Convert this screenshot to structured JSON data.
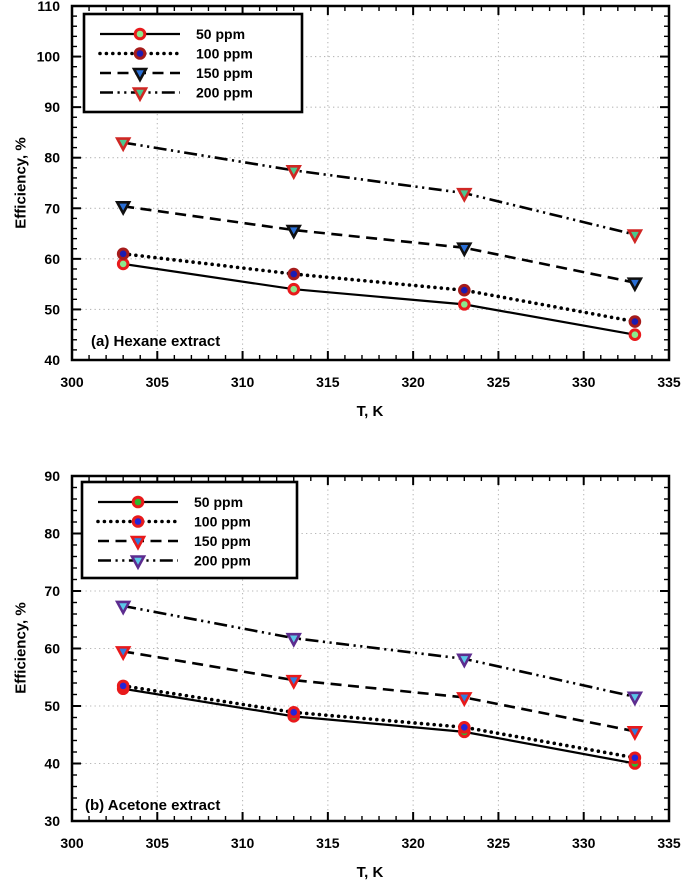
{
  "page": {
    "background": "#ffffff",
    "frame_color": "#000000",
    "grid_color": "#b8b8b8",
    "line_color": "#000000"
  },
  "chart_data": [
    {
      "type": "line",
      "panel_label": "(a) Hexane extract",
      "xlabel": "T, K",
      "ylabel": "Efficiency, %",
      "x": [
        303,
        313,
        323,
        333
      ],
      "xlim": [
        300,
        335
      ],
      "ylim": [
        40,
        110
      ],
      "x_ticks": [
        300,
        305,
        310,
        315,
        320,
        325,
        330,
        335
      ],
      "y_ticks": [
        40,
        50,
        60,
        70,
        80,
        90,
        100,
        110
      ],
      "x_minor_step": 1,
      "y_minor_step": 2,
      "grid": "dotted",
      "legend_position": "top-left",
      "series": [
        {
          "name": "50 ppm",
          "values": [
            59,
            54,
            51,
            45
          ],
          "line": "solid",
          "marker": "circle",
          "marker_stroke": "#e81a1c",
          "marker_fill": "#8ce88c"
        },
        {
          "name": "100 ppm",
          "values": [
            61,
            57,
            53.8,
            47.6
          ],
          "line": "dotted",
          "marker": "circle",
          "marker_stroke": "#a61b1b",
          "marker_fill": "#1b1bb2"
        },
        {
          "name": "150 ppm",
          "values": [
            70.4,
            65.7,
            62.2,
            55.3
          ],
          "line": "dashed",
          "marker": "triangle-down",
          "marker_stroke": "#101010",
          "marker_fill": "#2a6fd6"
        },
        {
          "name": "200 ppm",
          "values": [
            83,
            77.5,
            73,
            64.8
          ],
          "line": "dashdotdot",
          "marker": "triangle-down",
          "marker_stroke": "#d02724",
          "marker_fill": "#49c98e"
        }
      ]
    },
    {
      "type": "line",
      "panel_label": "(b) Acetone extract",
      "xlabel": "T, K",
      "ylabel": "Efficiency, %",
      "x": [
        303,
        313,
        323,
        333
      ],
      "xlim": [
        300,
        335
      ],
      "ylim": [
        30,
        90
      ],
      "x_ticks": [
        300,
        305,
        310,
        315,
        320,
        325,
        330,
        335
      ],
      "y_ticks": [
        30,
        40,
        50,
        60,
        70,
        80,
        90
      ],
      "x_minor_step": 1,
      "y_minor_step": 2,
      "grid": "dotted",
      "legend_position": "top-left",
      "series": [
        {
          "name": "50 ppm",
          "values": [
            53,
            48.2,
            45.5,
            40
          ],
          "line": "solid",
          "marker": "circle",
          "marker_stroke": "#e81a1c",
          "marker_fill": "#2eb82e"
        },
        {
          "name": "100 ppm",
          "values": [
            53.5,
            48.9,
            46.3,
            41
          ],
          "line": "dotted",
          "marker": "circle",
          "marker_stroke": "#e81a1c",
          "marker_fill": "#2424d8"
        },
        {
          "name": "150 ppm",
          "values": [
            59.5,
            54.5,
            51.5,
            45.6
          ],
          "line": "dashed",
          "marker": "triangle-down",
          "marker_stroke": "#e81a1c",
          "marker_fill": "#2e7de0"
        },
        {
          "name": "200 ppm",
          "values": [
            67.4,
            61.8,
            58.2,
            51.6
          ],
          "line": "dashdotdot",
          "marker": "triangle-down",
          "marker_stroke": "#5d2c8f",
          "marker_fill": "#5ac8e8"
        }
      ]
    }
  ]
}
